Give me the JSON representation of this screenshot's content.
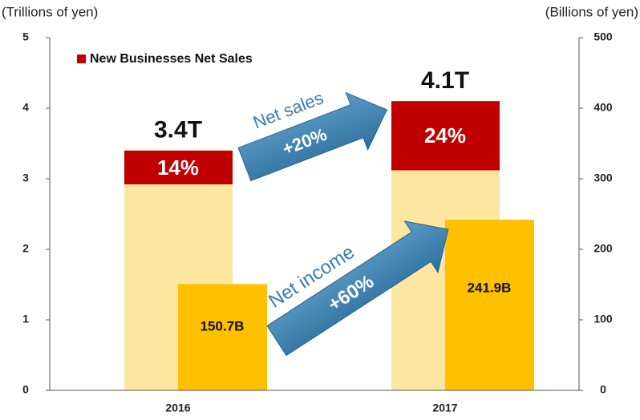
{
  "chart_data": {
    "type": "bar",
    "y_label": "(Trillions of yen)",
    "y2_label": "(Billions of yen)",
    "categories": [
      "2016",
      "2017"
    ],
    "ylim": [
      0,
      5
    ],
    "yticks": [
      0,
      1,
      2,
      3,
      4,
      5
    ],
    "y2lim": [
      0,
      500
    ],
    "y2ticks": [
      0,
      100,
      200,
      300,
      400,
      500
    ],
    "net_sales": {
      "color": "#fde6a0",
      "values": [
        3.4,
        4.1
      ],
      "value_labels": [
        "3.4T",
        "4.1T"
      ]
    },
    "new_business": {
      "name": "New Businesses Net Sales",
      "color": "#c00000",
      "values": [
        0.48,
        0.98
      ],
      "share_labels": [
        "14%",
        "24%"
      ]
    },
    "net_income": {
      "color": "#ffc000",
      "axis": "y2",
      "values": [
        150.7,
        241.9
      ],
      "value_labels": [
        "150.7B",
        "241.9B"
      ]
    },
    "arrows": [
      {
        "label": "Net sales",
        "change": "+20%"
      },
      {
        "label": "Net income",
        "change": "+60%"
      }
    ]
  }
}
